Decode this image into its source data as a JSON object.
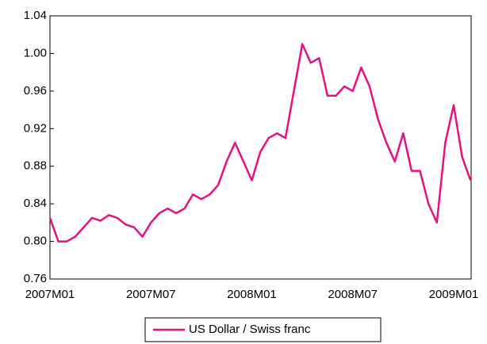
{
  "chart_data": {
    "type": "line",
    "categories": [
      "2007M01",
      null,
      null,
      null,
      null,
      null,
      null,
      null,
      null,
      null,
      null,
      null,
      "2007M07",
      null,
      null,
      null,
      null,
      null,
      null,
      null,
      null,
      null,
      null,
      null,
      "2008M01",
      null,
      null,
      null,
      null,
      null,
      null,
      null,
      null,
      null,
      null,
      null,
      "2008M07",
      null,
      null,
      null,
      null,
      null,
      null,
      null,
      null,
      null,
      null,
      null,
      "2009M01",
      null,
      null
    ],
    "series": [
      {
        "name": "US Dollar / Swiss franc",
        "color": "#e6107f",
        "values": [
          0.825,
          0.8,
          0.8,
          0.805,
          0.815,
          0.825,
          0.822,
          0.828,
          0.825,
          0.818,
          0.815,
          0.805,
          0.82,
          0.83,
          0.835,
          0.83,
          0.835,
          0.85,
          0.845,
          0.85,
          0.86,
          0.885,
          0.905,
          0.885,
          0.865,
          0.895,
          0.91,
          0.915,
          0.91,
          0.96,
          1.01,
          0.99,
          0.995,
          0.955,
          0.955,
          0.965,
          0.96,
          0.985,
          0.965,
          0.93,
          0.905,
          0.885,
          0.915,
          0.875,
          0.875,
          0.84,
          0.82,
          0.905,
          0.945,
          0.89,
          0.865
        ]
      }
    ],
    "ylim": [
      0.76,
      1.04
    ],
    "yticks": [
      {
        "value": 0.76,
        "label": "0.76"
      },
      {
        "value": 0.8,
        "label": "0.80"
      },
      {
        "value": 0.84,
        "label": "0.84"
      },
      {
        "value": 0.88,
        "label": "0.88"
      },
      {
        "value": 0.92,
        "label": "0.92"
      },
      {
        "value": 0.96,
        "label": "0.96"
      },
      {
        "value": 1.0,
        "label": "1.00"
      },
      {
        "value": 1.04,
        "label": "1.04"
      }
    ],
    "grid": false
  }
}
